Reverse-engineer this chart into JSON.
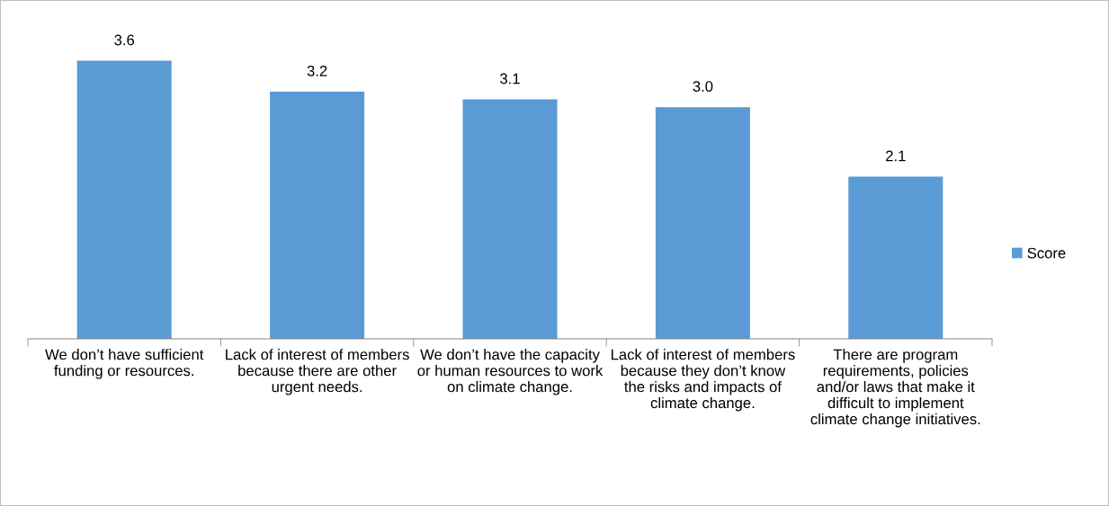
{
  "chart_data": {
    "type": "bar",
    "categories": [
      "We don’t have sufficient funding or resources.",
      "Lack of interest of members because there are other urgent needs.",
      "We don’t have the capacity or human resources to work on climate change.",
      "Lack of interest of members because they don’t know the risks and impacts of climate change.",
      "There are program requirements, policies and/or laws that make it difficult to implement climate change initiatives."
    ],
    "series": [
      {
        "name": "Score",
        "color": "#5b9bd5",
        "values": [
          3.6,
          3.2,
          3.1,
          3.0,
          2.1
        ],
        "value_labels": [
          "3.6",
          "3.2",
          "3.1",
          "3.0",
          "2.1"
        ]
      }
    ],
    "tick_labels": "x",
    "grid": false,
    "legend": "right"
  }
}
